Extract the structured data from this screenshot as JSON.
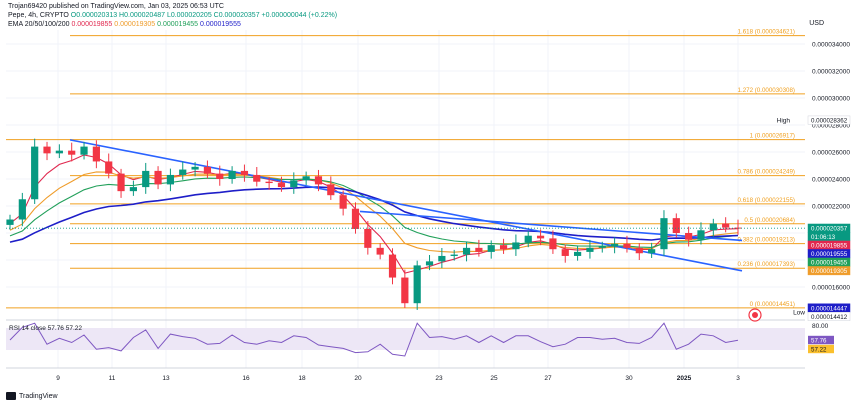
{
  "header": {
    "published": "Trojan69420 published on TradingView.com, Jan 03, 2025 06:53 UTC",
    "symbol": "Pepe, 4h, CRYPTO",
    "ohlc": "O0.000020313 H0.000020487 L0.000020205 C0.000020357 +0.000000044 (+0.22%)",
    "ema_label": "EMA 20/50/100/200",
    "ema_values": [
      "0.000019855",
      "0.000019305",
      "0.000019455",
      "0.000019555"
    ]
  },
  "currency": "USD",
  "price_axis": {
    "ticks": [
      "0.000034000",
      "0.000032000",
      "0.000030000",
      "0.000028000",
      "0.000026000",
      "0.000024000",
      "0.000022000",
      "0.000020000",
      "0.000018000",
      "0.000016000"
    ],
    "high_label": "High",
    "low_label": "Low",
    "badges": [
      {
        "text": "0.000028362",
        "price": 28.362,
        "bg": "#ffffff",
        "fg": "#131722"
      },
      {
        "text": "0.000020357",
        "price": 20.357,
        "bg": "#089981",
        "fg": "#ffffff"
      },
      {
        "text": "01:06:13",
        "price": 19.95,
        "bg": "#089981",
        "fg": "#ffffff"
      },
      {
        "text": "0.000019855",
        "price": 19.855,
        "bg": "#e0284f",
        "fg": "#ffffff"
      },
      {
        "text": "0.000019555",
        "price": 19.555,
        "bg": "#1e1ec8",
        "fg": "#ffffff"
      },
      {
        "text": "0.000019455",
        "price": 19.455,
        "bg": "#22a05a",
        "fg": "#ffffff"
      },
      {
        "text": "0.000019305",
        "price": 19.305,
        "bg": "#ef9c2a",
        "fg": "#ffffff"
      },
      {
        "text": "0.000014447",
        "price": 14.447,
        "bg": "#1e1ec8",
        "fg": "#ffffff"
      },
      {
        "text": "0.000014412",
        "price": 14.412,
        "bg": "#ffffff",
        "fg": "#131722"
      }
    ]
  },
  "fib_levels": [
    {
      "label": "1.618 (0.000034621)",
      "price": 34.621
    },
    {
      "label": "1.272 (0.000030308)",
      "price": 30.308
    },
    {
      "label": "1 (0.000026917)",
      "price": 26.917
    },
    {
      "label": "0.786 (0.000024249)",
      "price": 24.249
    },
    {
      "label": "0.618 (0.000022155)",
      "price": 22.155
    },
    {
      "label": "0.5 (0.000020684)",
      "price": 20.684
    },
    {
      "label": "0.382 (0.000019213)",
      "price": 19.213
    },
    {
      "label": "0.236 (0.000017393)",
      "price": 17.393
    },
    {
      "label": "0 (0.000014451)",
      "price": 14.451
    }
  ],
  "rsi": {
    "label": "RSI 14 close",
    "values": [
      "57.76",
      "57.22"
    ],
    "axis_top": "80.00",
    "badges": [
      "57.76",
      "57.22"
    ]
  },
  "x_axis": [
    "9",
    "11",
    "13",
    "16",
    "18",
    "20",
    "23",
    "25",
    "27",
    "30",
    "2025",
    "3"
  ],
  "footer": "TradingView",
  "colors": {
    "fib": "#f0a020",
    "trend": "#2962ff",
    "bull": "#089981",
    "bear": "#f23645",
    "ema20": "#e0284f",
    "ema50": "#ef9c2a",
    "ema100": "#22a05a",
    "ema200": "#1e1ec8",
    "rsi": "#7e57c2"
  },
  "chart_data": {
    "type": "candlestick",
    "unit": "1e-6 USD",
    "ylim": [
      13.5,
      35.5
    ],
    "x_ticks": [
      "9",
      "11",
      "13",
      "16",
      "18",
      "20",
      "23",
      "25",
      "27",
      "30",
      "2025",
      "3"
    ],
    "close_series": [
      21.0,
      22.5,
      26.4,
      25.9,
      26.1,
      25.8,
      26.4,
      25.3,
      24.4,
      23.1,
      23.4,
      24.6,
      23.6,
      24.3,
      24.7,
      24.9,
      24.4,
      24.0,
      24.6,
      24.3,
      23.8,
      23.7,
      23.4,
      23.9,
      24.2,
      23.6,
      22.8,
      21.8,
      20.3,
      18.9,
      18.4,
      16.7,
      14.8,
      17.6,
      17.9,
      18.3,
      18.4,
      18.9,
      18.6,
      19.1,
      18.8,
      19.3,
      19.8,
      19.6,
      18.8,
      18.3,
      18.6,
      18.9,
      19.0,
      19.2,
      18.9,
      18.5,
      18.8,
      21.1,
      20.0,
      19.5,
      20.2,
      20.7,
      20.4,
      20.36
    ],
    "ema_series": [
      {
        "name": "EMA 20",
        "final": 19.855
      },
      {
        "name": "EMA 50",
        "final": 19.305
      },
      {
        "name": "EMA 100",
        "final": 19.455
      },
      {
        "name": "EMA 200",
        "final": 19.555
      }
    ],
    "high": 28.362,
    "low": 14.412,
    "last": 20.357
  }
}
